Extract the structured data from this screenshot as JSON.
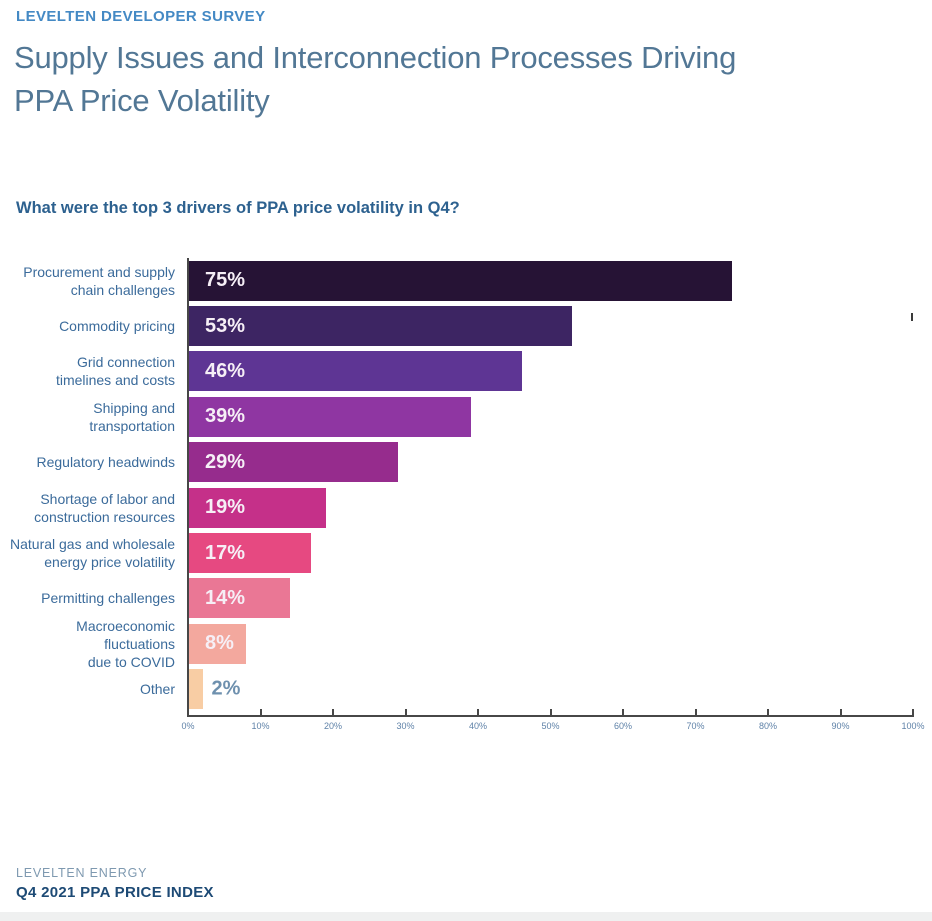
{
  "header": {
    "eyebrow": "LEVELTEN DEVELOPER SURVEY",
    "title": "Supply Issues and Interconnection Processes Driving\nPPA Price Volatility"
  },
  "chart_data": {
    "type": "bar",
    "orientation": "horizontal",
    "title": "What were the top 3 drivers of PPA price volatility in Q4?",
    "categories": [
      "Procurement and supply\nchain challenges",
      "Commodity pricing",
      "Grid connection\ntimelines and costs",
      "Shipping and\ntransportation",
      "Regulatory headwinds",
      "Shortage of labor and\nconstruction resources",
      "Natural gas and wholesale\nenergy price volatility",
      "Permitting challenges",
      "Macroeconomic\nfluctuations\ndue to COVID",
      "Other"
    ],
    "values": [
      75,
      53,
      46,
      39,
      29,
      19,
      17,
      14,
      8,
      2
    ],
    "value_labels": [
      "75%",
      "53%",
      "46%",
      "39%",
      "29%",
      "19%",
      "17%",
      "14%",
      "8%",
      "2%"
    ],
    "bar_colors": [
      "#261335",
      "#3d2563",
      "#5e3594",
      "#8f36a2",
      "#962c8d",
      "#c53089",
      "#e64981",
      "#ea7795",
      "#f3a89e",
      "#f8cda4"
    ],
    "xlabel": "",
    "ylabel": "",
    "xlim": [
      0,
      100
    ],
    "x_ticks": [
      "0%",
      "10%",
      "20%",
      "30%",
      "40%",
      "50%",
      "60%",
      "70%",
      "80%",
      "90%",
      "100%"
    ],
    "grid": false,
    "legend": null,
    "value_label_position": "inside-left, outside for smallest bar"
  },
  "footer": {
    "brand": "LEVELTEN ENERGY",
    "report": "Q4 2021 PPA PRICE INDEX"
  },
  "colors": {
    "background": "#ffffff",
    "eyebrow": "#4489c4",
    "title": "#527795",
    "question": "#2d618f",
    "category_label": "#3b6b9b",
    "value_label_inside": "#f6eff6",
    "value_label_outside": "#6e90ae",
    "axis_line": "#474747",
    "tick_label": "#5f82a8",
    "footer_brand": "#7e99b0",
    "footer_report": "#1d4a75",
    "bottom_strip": "#eff0f0"
  }
}
